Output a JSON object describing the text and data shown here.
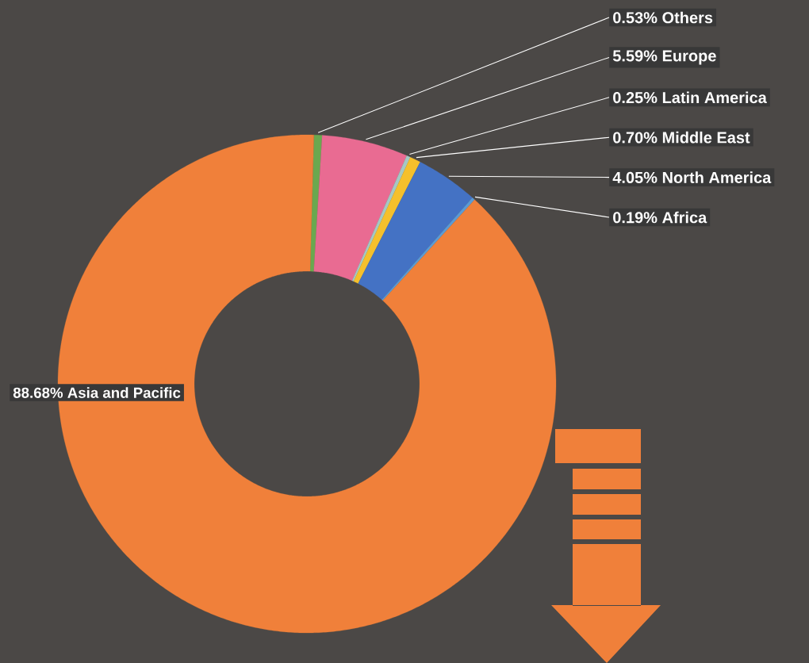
{
  "chart_data": {
    "type": "donut",
    "categories": [
      "Others",
      "Europe",
      "Latin America",
      "Middle East",
      "North America",
      "Africa",
      "Asia and Pacific"
    ],
    "values": [
      0.53,
      5.59,
      0.25,
      0.7,
      4.05,
      0.19,
      88.68
    ],
    "value_labels": [
      "0.53%",
      "5.59%",
      "0.25%",
      "0.70%",
      "4.05%",
      "0.19%",
      "88.68%"
    ],
    "colors": [
      "#6aa84f",
      "#e96b92",
      "#a5c8c4",
      "#f5c02c",
      "#4472c4",
      "#5b9bd5",
      "#f0803a"
    ]
  }
}
